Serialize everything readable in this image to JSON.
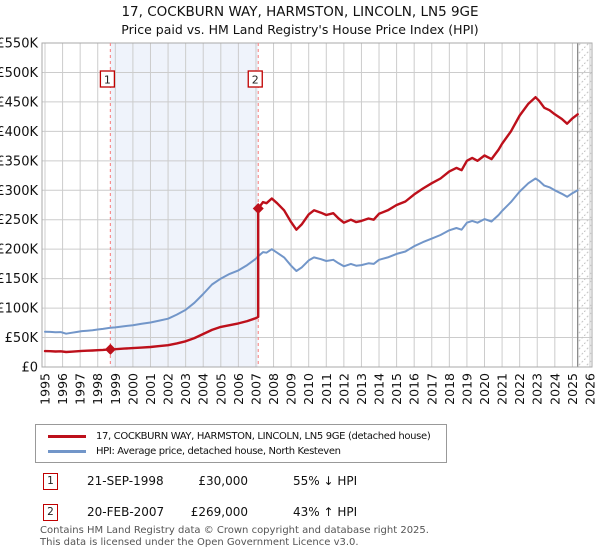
{
  "header": {
    "title": "17, COCKBURN WAY, HARMSTON, LINCOLN, LN5 9GE",
    "subtitle": "Price paid vs. HM Land Registry's House Price Index (HPI)"
  },
  "legend": {
    "items": [
      {
        "label": "17, COCKBURN WAY, HARMSTON, LINCOLN, LN5 9GE (detached house)",
        "color": "#bd101b"
      },
      {
        "label": "HPI: Average price, detached house, North Kesteven",
        "color": "#7296c9"
      }
    ]
  },
  "transactions": [
    {
      "num": "1",
      "date": "21-SEP-1998",
      "price": "£30,000",
      "hpi": "55% ↓ HPI"
    },
    {
      "num": "2",
      "date": "20-FEB-2007",
      "price": "£269,000",
      "hpi": "43% ↑ HPI"
    }
  ],
  "footer": {
    "line1": "Contains HM Land Registry data © Crown copyright and database right 2025.",
    "line2": "This data is licensed under the Open Government Licence v3.0."
  },
  "chart_data": {
    "type": "line",
    "title": "17, COCKBURN WAY, HARMSTON, LINCOLN, LN5 9GE — Price paid vs. HPI",
    "x_axis": {
      "tick_years": [
        1995,
        1996,
        1997,
        1998,
        1999,
        2000,
        2001,
        2002,
        2003,
        2004,
        2005,
        2006,
        2007,
        2008,
        2009,
        2010,
        2011,
        2012,
        2013,
        2014,
        2015,
        2016,
        2017,
        2018,
        2019,
        2020,
        2021,
        2022,
        2023,
        2024,
        2025,
        2026
      ]
    },
    "y_axis": {
      "min": 0,
      "max": 550000,
      "ticks": [
        {
          "value": 0,
          "label": "£0"
        },
        {
          "value": 50000,
          "label": "£50K"
        },
        {
          "value": 100000,
          "label": "£100K"
        },
        {
          "value": 150000,
          "label": "£150K"
        },
        {
          "value": 200000,
          "label": "£200K"
        },
        {
          "value": 250000,
          "label": "£250K"
        },
        {
          "value": 300000,
          "label": "£300K"
        },
        {
          "value": 350000,
          "label": "£350K"
        },
        {
          "value": 400000,
          "label": "£400K"
        },
        {
          "value": 450000,
          "label": "£450K"
        },
        {
          "value": 500000,
          "label": "£500K"
        },
        {
          "value": 550000,
          "label": "£550K"
        }
      ]
    },
    "series": [
      {
        "name": "hpi",
        "legend": "HPI: Average price, detached house, North Kesteven",
        "color": "#7296c9",
        "width": 2,
        "points": [
          [
            1995.0,
            60000
          ],
          [
            1995.3,
            59600
          ],
          [
            1995.6,
            59000
          ],
          [
            1995.9,
            59300
          ],
          [
            1996.2,
            56500
          ],
          [
            1996.5,
            58000
          ],
          [
            1996.8,
            59400
          ],
          [
            1997.1,
            61000
          ],
          [
            1997.4,
            61700
          ],
          [
            1997.7,
            62400
          ],
          [
            1998.0,
            63700
          ],
          [
            1998.3,
            64600
          ],
          [
            1998.72,
            66500
          ],
          [
            1999.0,
            67300
          ],
          [
            1999.5,
            69300
          ],
          [
            2000.0,
            71000
          ],
          [
            2000.5,
            73300
          ],
          [
            2001.0,
            75500
          ],
          [
            2001.5,
            78800
          ],
          [
            2002.0,
            82000
          ],
          [
            2002.5,
            89000
          ],
          [
            2003.0,
            97000
          ],
          [
            2003.5,
            109000
          ],
          [
            2004.0,
            124000
          ],
          [
            2004.5,
            140000
          ],
          [
            2005.0,
            150000
          ],
          [
            2005.5,
            158000
          ],
          [
            2006.0,
            164000
          ],
          [
            2006.5,
            173000
          ],
          [
            2007.0,
            184000
          ],
          [
            2007.13,
            188000
          ],
          [
            2007.4,
            195000
          ],
          [
            2007.6,
            194000
          ],
          [
            2007.9,
            200000
          ],
          [
            2008.2,
            194000
          ],
          [
            2008.6,
            186000
          ],
          [
            2009.0,
            172000
          ],
          [
            2009.3,
            163000
          ],
          [
            2009.6,
            169000
          ],
          [
            2010.0,
            181000
          ],
          [
            2010.3,
            186000
          ],
          [
            2010.7,
            183000
          ],
          [
            2011.0,
            180000
          ],
          [
            2011.4,
            182000
          ],
          [
            2011.7,
            176000
          ],
          [
            2012.0,
            171000
          ],
          [
            2012.4,
            175000
          ],
          [
            2012.7,
            172000
          ],
          [
            2013.0,
            173000
          ],
          [
            2013.4,
            176000
          ],
          [
            2013.7,
            175000
          ],
          [
            2014.0,
            182000
          ],
          [
            2014.5,
            186000
          ],
          [
            2015.0,
            192000
          ],
          [
            2015.5,
            196000
          ],
          [
            2016.0,
            205000
          ],
          [
            2016.5,
            212000
          ],
          [
            2017.0,
            218000
          ],
          [
            2017.5,
            224000
          ],
          [
            2018.0,
            232000
          ],
          [
            2018.4,
            236000
          ],
          [
            2018.7,
            233000
          ],
          [
            2019.0,
            245000
          ],
          [
            2019.3,
            248000
          ],
          [
            2019.6,
            245000
          ],
          [
            2020.0,
            251000
          ],
          [
            2020.4,
            247000
          ],
          [
            2020.8,
            258000
          ],
          [
            2021.0,
            265000
          ],
          [
            2021.5,
            280000
          ],
          [
            2022.0,
            298000
          ],
          [
            2022.5,
            312000
          ],
          [
            2022.9,
            320000
          ],
          [
            2023.1,
            316000
          ],
          [
            2023.4,
            308000
          ],
          [
            2023.7,
            305000
          ],
          [
            2024.0,
            300000
          ],
          [
            2024.4,
            294000
          ],
          [
            2024.7,
            289000
          ],
          [
            2025.0,
            295000
          ],
          [
            2025.3,
            300000
          ]
        ]
      },
      {
        "name": "price-paid",
        "legend": "17, COCKBURN WAY, HARMSTON, LINCOLN, LN5 9GE (detached house)",
        "color": "#bd101b",
        "width": 2.4,
        "points": [
          [
            1995.0,
            27000
          ],
          [
            1995.3,
            26800
          ],
          [
            1995.6,
            26300
          ],
          [
            1995.9,
            26600
          ],
          [
            1996.2,
            25400
          ],
          [
            1996.5,
            26000
          ],
          [
            1996.8,
            26600
          ],
          [
            1997.1,
            27400
          ],
          [
            1997.4,
            27700
          ],
          [
            1997.7,
            28000
          ],
          [
            1998.0,
            28600
          ],
          [
            1998.3,
            29000
          ],
          [
            1998.72,
            30000
          ],
          [
            1999.0,
            30300
          ],
          [
            1999.5,
            31200
          ],
          [
            2000.0,
            32000
          ],
          [
            2000.5,
            33000
          ],
          [
            2001.0,
            34000
          ],
          [
            2001.5,
            35500
          ],
          [
            2002.0,
            37000
          ],
          [
            2002.5,
            40000
          ],
          [
            2003.0,
            43700
          ],
          [
            2003.5,
            49000
          ],
          [
            2004.0,
            56000
          ],
          [
            2004.5,
            63000
          ],
          [
            2005.0,
            68000
          ],
          [
            2005.5,
            71000
          ],
          [
            2006.0,
            74000
          ],
          [
            2006.5,
            78000
          ],
          [
            2007.0,
            83000
          ],
          [
            2007.13,
            85000
          ],
          [
            2007.13,
            269000
          ],
          [
            2007.4,
            280000
          ],
          [
            2007.6,
            278000
          ],
          [
            2007.9,
            286000
          ],
          [
            2008.2,
            278000
          ],
          [
            2008.6,
            266000
          ],
          [
            2009.0,
            246000
          ],
          [
            2009.3,
            233000
          ],
          [
            2009.6,
            242000
          ],
          [
            2010.0,
            259000
          ],
          [
            2010.3,
            266000
          ],
          [
            2010.7,
            262000
          ],
          [
            2011.0,
            258000
          ],
          [
            2011.4,
            261000
          ],
          [
            2011.7,
            252000
          ],
          [
            2012.0,
            245000
          ],
          [
            2012.4,
            250000
          ],
          [
            2012.7,
            246000
          ],
          [
            2013.0,
            248000
          ],
          [
            2013.4,
            252000
          ],
          [
            2013.7,
            250000
          ],
          [
            2014.0,
            260000
          ],
          [
            2014.5,
            266000
          ],
          [
            2015.0,
            275000
          ],
          [
            2015.5,
            281000
          ],
          [
            2016.0,
            293000
          ],
          [
            2016.5,
            303000
          ],
          [
            2017.0,
            312000
          ],
          [
            2017.5,
            320000
          ],
          [
            2018.0,
            332000
          ],
          [
            2018.4,
            338000
          ],
          [
            2018.7,
            334000
          ],
          [
            2019.0,
            350000
          ],
          [
            2019.3,
            355000
          ],
          [
            2019.6,
            350000
          ],
          [
            2020.0,
            359000
          ],
          [
            2020.4,
            353000
          ],
          [
            2020.8,
            369000
          ],
          [
            2021.0,
            379000
          ],
          [
            2021.5,
            400000
          ],
          [
            2022.0,
            427000
          ],
          [
            2022.5,
            447000
          ],
          [
            2022.9,
            458000
          ],
          [
            2023.1,
            452000
          ],
          [
            2023.4,
            440000
          ],
          [
            2023.7,
            436000
          ],
          [
            2024.0,
            429000
          ],
          [
            2024.4,
            421000
          ],
          [
            2024.7,
            413000
          ],
          [
            2025.0,
            422000
          ],
          [
            2025.3,
            429000
          ]
        ]
      }
    ],
    "sales": [
      {
        "num": "1",
        "year": 1998.72,
        "value": 30000
      },
      {
        "num": "2",
        "year": 2007.13,
        "value": 269000
      }
    ],
    "shaded_span": {
      "from_year": 1998.72,
      "to_year": 2007.13
    },
    "future_hatch_from_year": 2025.3,
    "colors": {
      "grid": "#cccccc",
      "border": "#a8a8a8",
      "dashed_marker": "#f78f8f",
      "shade": "#eff3fb",
      "hatch_line": "#c4c4c4",
      "hatch_border": "#8a8a8a",
      "flag_border": "#c00000",
      "tick_text": "#111111"
    }
  }
}
